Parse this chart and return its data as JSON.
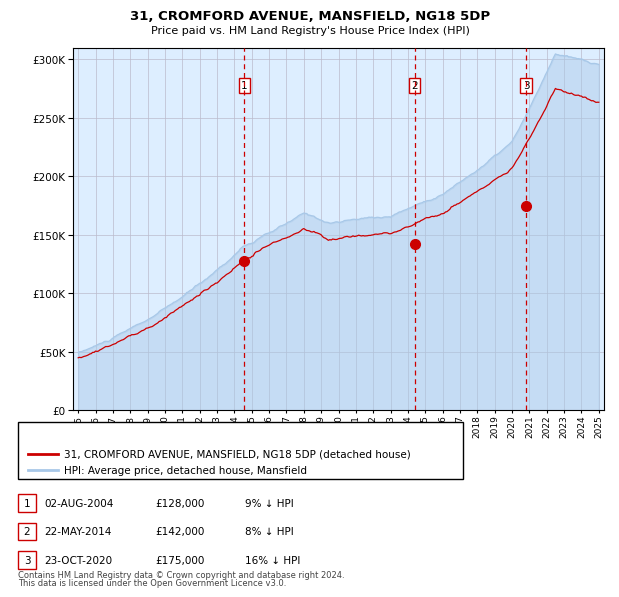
{
  "title1": "31, CROMFORD AVENUE, MANSFIELD, NG18 5DP",
  "title2": "Price paid vs. HM Land Registry's House Price Index (HPI)",
  "transactions": [
    {
      "date": "02-AUG-2004",
      "date_num": 2004.58,
      "price": 128000,
      "label": "1",
      "pct": "9% ↓ HPI"
    },
    {
      "date": "22-MAY-2014",
      "date_num": 2014.38,
      "price": 142000,
      "label": "2",
      "pct": "8% ↓ HPI"
    },
    {
      "date": "23-OCT-2020",
      "date_num": 2020.81,
      "price": 175000,
      "label": "3",
      "pct": "16% ↓ HPI"
    }
  ],
  "legend_line1": "31, CROMFORD AVENUE, MANSFIELD, NG18 5DP (detached house)",
  "legend_line2": "HPI: Average price, detached house, Mansfield",
  "footer1": "Contains HM Land Registry data © Crown copyright and database right 2024.",
  "footer2": "This data is licensed under the Open Government Licence v3.0.",
  "hpi_color": "#a8c8e8",
  "price_color": "#cc0000",
  "vline_color": "#cc0000",
  "bg_color": "#ddeeff",
  "grid_color": "#bbbbcc",
  "ylim": [
    0,
    310000
  ],
  "xlim_start": 1994.7,
  "xlim_end": 2025.3
}
